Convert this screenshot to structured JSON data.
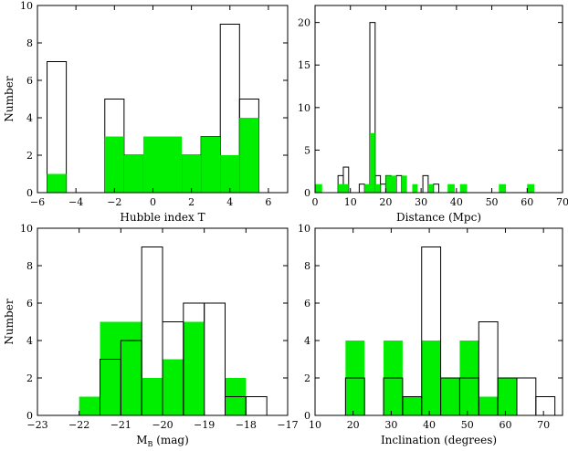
{
  "chart_data": [
    {
      "type": "bar",
      "id": "p1",
      "xlabel": "Hubble index T",
      "ylabel": "Number",
      "xlim": [
        -6,
        7
      ],
      "ylim": [
        0,
        10
      ],
      "xticks": [
        -6,
        -4,
        -2,
        0,
        2,
        4,
        6
      ],
      "yticks": [
        0,
        2,
        4,
        6,
        8,
        10
      ],
      "series": [
        {
          "name": "",
          "style": "outline",
          "bars": [
            {
              "x0": -5.5,
              "x1": -4.5,
              "v": 7
            },
            {
              "x0": -2.5,
              "x1": -1.5,
              "v": 5
            },
            {
              "x0": -1.5,
              "x1": -0.5,
              "v": 2
            },
            {
              "x0": -0.5,
              "x1": 0.5,
              "v": 2
            },
            {
              "x0": 1.5,
              "x1": 2.5,
              "v": 2
            },
            {
              "x0": 2.5,
              "x1": 3.5,
              "v": 3
            },
            {
              "x0": 3.5,
              "x1": 4.5,
              "v": 9
            },
            {
              "x0": 4.5,
              "x1": 5.5,
              "v": 5
            }
          ]
        },
        {
          "name": "",
          "style": "fill",
          "bars": [
            {
              "x0": -5.5,
              "x1": -4.5,
              "v": 1
            },
            {
              "x0": -2.5,
              "x1": -1.5,
              "v": 3
            },
            {
              "x0": -1.5,
              "x1": -0.5,
              "v": 2
            },
            {
              "x0": -0.5,
              "x1": 1.5,
              "v": 3
            },
            {
              "x0": 1.5,
              "x1": 2.5,
              "v": 2
            },
            {
              "x0": 2.5,
              "x1": 3.5,
              "v": 3
            },
            {
              "x0": 3.5,
              "x1": 4.5,
              "v": 2
            },
            {
              "x0": 4.5,
              "x1": 5.5,
              "v": 4
            }
          ]
        }
      ]
    },
    {
      "type": "bar",
      "id": "p2",
      "xlabel": "Distance (Mpc)",
      "ylabel": "",
      "xlim": [
        0,
        70
      ],
      "ylim": [
        0,
        22
      ],
      "xticks": [
        0,
        10,
        20,
        30,
        40,
        50,
        60,
        70
      ],
      "yticks": [
        0,
        5,
        10,
        15,
        20
      ],
      "series": [
        {
          "name": "",
          "style": "outline",
          "bars": [
            {
              "x0": 6.5,
              "x1": 8,
              "v": 2
            },
            {
              "x0": 8,
              "x1": 9.5,
              "v": 3
            },
            {
              "x0": 12.5,
              "x1": 14,
              "v": 1
            },
            {
              "x0": 15.5,
              "x1": 17,
              "v": 20
            },
            {
              "x0": 17,
              "x1": 18.5,
              "v": 2
            },
            {
              "x0": 18.5,
              "x1": 20,
              "v": 1
            },
            {
              "x0": 20,
              "x1": 21.5,
              "v": 2
            },
            {
              "x0": 23,
              "x1": 24.5,
              "v": 2
            },
            {
              "x0": 30.5,
              "x1": 32,
              "v": 2
            },
            {
              "x0": 33.5,
              "x1": 35,
              "v": 1
            }
          ]
        },
        {
          "name": "",
          "style": "fill",
          "bars": [
            {
              "x0": 0,
              "x1": 2,
              "v": 1
            },
            {
              "x0": 6.5,
              "x1": 9.5,
              "v": 1
            },
            {
              "x0": 14,
              "x1": 15.5,
              "v": 1
            },
            {
              "x0": 15.5,
              "x1": 17,
              "v": 7
            },
            {
              "x0": 17,
              "x1": 18.5,
              "v": 1
            },
            {
              "x0": 20,
              "x1": 23,
              "v": 2
            },
            {
              "x0": 24.5,
              "x1": 26,
              "v": 2
            },
            {
              "x0": 27.5,
              "x1": 29,
              "v": 1
            },
            {
              "x0": 32,
              "x1": 33.5,
              "v": 1
            },
            {
              "x0": 37.5,
              "x1": 39.5,
              "v": 1
            },
            {
              "x0": 41,
              "x1": 43,
              "v": 1
            },
            {
              "x0": 52,
              "x1": 54,
              "v": 1
            },
            {
              "x0": 60,
              "x1": 62,
              "v": 1
            }
          ]
        }
      ]
    },
    {
      "type": "bar",
      "id": "p3",
      "xlabel_main": "M",
      "xlabel_sub": "B",
      "xlabel_unit": " (mag)",
      "ylabel": "Number",
      "xlim": [
        -23,
        -17
      ],
      "ylim": [
        0,
        10
      ],
      "xticks": [
        -23,
        -22,
        -21,
        -20,
        -19,
        -18,
        -17
      ],
      "yticks": [
        0,
        2,
        4,
        6,
        8,
        10
      ],
      "series": [
        {
          "name": "",
          "style": "fill",
          "bars": [
            {
              "x0": -22,
              "x1": -21.5,
              "v": 1
            },
            {
              "x0": -21.5,
              "x1": -20.5,
              "v": 5
            },
            {
              "x0": -20.5,
              "x1": -20,
              "v": 2
            },
            {
              "x0": -20,
              "x1": -19.5,
              "v": 3
            },
            {
              "x0": -19.5,
              "x1": -19,
              "v": 5
            },
            {
              "x0": -18.5,
              "x1": -18,
              "v": 2
            }
          ]
        },
        {
          "name": "",
          "style": "outline",
          "bars": [
            {
              "x0": -21.5,
              "x1": -21,
              "v": 3
            },
            {
              "x0": -21,
              "x1": -20.5,
              "v": 4
            },
            {
              "x0": -20.5,
              "x1": -20,
              "v": 9
            },
            {
              "x0": -20,
              "x1": -19.5,
              "v": 5
            },
            {
              "x0": -19.5,
              "x1": -19,
              "v": 6
            },
            {
              "x0": -19,
              "x1": -18.5,
              "v": 6
            },
            {
              "x0": -18.5,
              "x1": -18,
              "v": 1
            },
            {
              "x0": -18,
              "x1": -17.5,
              "v": 1
            }
          ]
        }
      ]
    },
    {
      "type": "bar",
      "id": "p4",
      "xlabel": "Inclination (degrees)",
      "ylabel": "",
      "xlim": [
        10,
        75
      ],
      "ylim": [
        0,
        10
      ],
      "xticks": [
        10,
        20,
        30,
        40,
        50,
        60,
        70
      ],
      "yticks": [
        0,
        2,
        4,
        6,
        8,
        10
      ],
      "series": [
        {
          "name": "",
          "style": "fill",
          "bars": [
            {
              "x0": 18,
              "x1": 23,
              "v": 4
            },
            {
              "x0": 28,
              "x1": 33,
              "v": 4
            },
            {
              "x0": 33,
              "x1": 38,
              "v": 1
            },
            {
              "x0": 38,
              "x1": 43,
              "v": 4
            },
            {
              "x0": 43,
              "x1": 48,
              "v": 2
            },
            {
              "x0": 48,
              "x1": 53,
              "v": 4
            },
            {
              "x0": 53,
              "x1": 58,
              "v": 1
            },
            {
              "x0": 58,
              "x1": 63,
              "v": 2
            }
          ]
        },
        {
          "name": "",
          "style": "outline",
          "bars": [
            {
              "x0": 18,
              "x1": 23,
              "v": 2
            },
            {
              "x0": 28,
              "x1": 33,
              "v": 2
            },
            {
              "x0": 33,
              "x1": 38,
              "v": 1
            },
            {
              "x0": 38,
              "x1": 43,
              "v": 9
            },
            {
              "x0": 43,
              "x1": 48,
              "v": 2
            },
            {
              "x0": 48,
              "x1": 53,
              "v": 2
            },
            {
              "x0": 53,
              "x1": 58,
              "v": 5
            },
            {
              "x0": 58,
              "x1": 63,
              "v": 2
            },
            {
              "x0": 63,
              "x1": 68,
              "v": 2
            },
            {
              "x0": 68,
              "x1": 73,
              "v": 1
            }
          ]
        }
      ]
    }
  ],
  "colors": {
    "fill": "#00ee00",
    "outline": "#000000"
  }
}
